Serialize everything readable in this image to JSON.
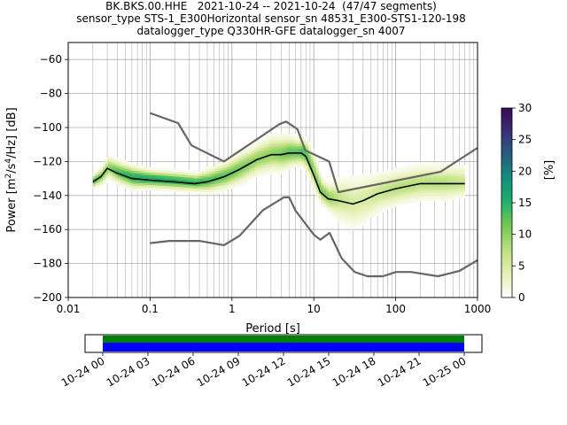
{
  "title_lines": [
    "BK.BKS.00.HHE   2021-10-24 -- 2021-10-24  (47/47 segments)",
    "sensor_type STS-1_E300Horizontal sensor_sn 48531_E300-STS1-120-198",
    "datalogger_type Q330HR-GFE datalogger_sn 4007"
  ],
  "chart_data": {
    "type": "heatmap",
    "title": "BK.BKS.00.HHE   2021-10-24 -- 2021-10-24  (47/47 segments)",
    "xlabel": "Period [s]",
    "ylabel": "Power [m²/s⁴/Hz] [dB]",
    "x_scale": "log",
    "xlim": [
      0.01,
      1000
    ],
    "ylim": [
      -200,
      -50
    ],
    "x_ticks": [
      0.01,
      0.1,
      1,
      10,
      100,
      1000
    ],
    "x_tick_labels": [
      "0.01",
      "0.1",
      "1",
      "10",
      "100",
      "1000"
    ],
    "y_ticks": [
      -200,
      -180,
      -160,
      -140,
      -120,
      -100,
      -80,
      -60
    ],
    "y_tick_labels": [
      "−200",
      "−180",
      "−160",
      "−140",
      "−120",
      "−100",
      "−80",
      "−60"
    ],
    "grid": true,
    "colorbar": {
      "label": "[%]",
      "range": [
        0,
        30
      ],
      "ticks": [
        0,
        5,
        10,
        15,
        20,
        25,
        30
      ],
      "tick_labels": [
        "0",
        "5",
        "10",
        "15",
        "20",
        "25",
        "30"
      ]
    },
    "series": [
      {
        "role": "model-high",
        "color": "#666666",
        "x": [
          0.1,
          0.22,
          0.32,
          0.8,
          3.8,
          4.6,
          6.3,
          7.9,
          15.4,
          20,
          354.8,
          1000
        ],
        "y": [
          -91.5,
          -97.4,
          -110.5,
          -120,
          -98,
          -96.5,
          -101,
          -113.5,
          -120,
          -138,
          -126,
          -112
        ]
      },
      {
        "role": "model-low",
        "color": "#666666",
        "x": [
          0.1,
          0.17,
          0.4,
          0.8,
          1.24,
          2.4,
          4.3,
          5,
          6,
          10,
          12,
          15.6,
          21.9,
          31.6,
          45,
          70,
          101,
          154,
          328,
          600,
          1000
        ],
        "y": [
          -168,
          -166.7,
          -166.7,
          -169.2,
          -163.7,
          -148.6,
          -141.1,
          -141.1,
          -149,
          -163,
          -166,
          -162,
          -177,
          -185,
          -187.5,
          -187.5,
          -185,
          -185,
          -187.5,
          -184.4,
          -178
        ]
      },
      {
        "role": "median",
        "color": "#000000",
        "x": [
          0.02,
          0.025,
          0.03,
          0.04,
          0.06,
          0.1,
          0.2,
          0.35,
          0.5,
          0.8,
          1.2,
          2,
          3,
          4,
          5,
          6,
          7,
          8,
          10,
          12,
          15,
          20,
          30,
          40,
          60,
          100,
          200,
          400,
          700
        ],
        "y": [
          -132,
          -129,
          -124,
          -127,
          -130,
          -131,
          -132,
          -133,
          -132,
          -129,
          -125,
          -119,
          -116,
          -116,
          -115,
          -115,
          -115,
          -117,
          -128,
          -138,
          -142,
          -143,
          -145,
          -143,
          -139,
          -136,
          -133,
          -133,
          -133
        ]
      }
    ],
    "density": [
      {
        "x": 0.02,
        "y": -132,
        "spread": 3,
        "level": 12
      },
      {
        "x": 0.025,
        "y": -129,
        "spread": 4,
        "level": 10
      },
      {
        "x": 0.03,
        "y": -124,
        "spread": 5,
        "level": 9
      },
      {
        "x": 0.04,
        "y": -127,
        "spread": 5,
        "level": 12
      },
      {
        "x": 0.06,
        "y": -130,
        "spread": 5,
        "level": 14
      },
      {
        "x": 0.1,
        "y": -131,
        "spread": 4,
        "level": 15
      },
      {
        "x": 0.2,
        "y": -132,
        "spread": 4,
        "level": 14
      },
      {
        "x": 0.35,
        "y": -133,
        "spread": 4,
        "level": 13
      },
      {
        "x": 0.5,
        "y": -132,
        "spread": 5,
        "level": 12
      },
      {
        "x": 0.8,
        "y": -129,
        "spread": 6,
        "level": 11
      },
      {
        "x": 1.2,
        "y": -125,
        "spread": 7,
        "level": 10
      },
      {
        "x": 2,
        "y": -119,
        "spread": 7,
        "level": 9
      },
      {
        "x": 3,
        "y": -116,
        "spread": 8,
        "level": 9
      },
      {
        "x": 4,
        "y": -116,
        "spread": 8,
        "level": 10
      },
      {
        "x": 5,
        "y": -115,
        "spread": 7,
        "level": 11
      },
      {
        "x": 6,
        "y": -115,
        "spread": 6,
        "level": 11
      },
      {
        "x": 7,
        "y": -115,
        "spread": 6,
        "level": 12
      },
      {
        "x": 8,
        "y": -117,
        "spread": 7,
        "level": 11
      },
      {
        "x": 10,
        "y": -128,
        "spread": 8,
        "level": 9
      },
      {
        "x": 12,
        "y": -138,
        "spread": 6,
        "level": 10
      },
      {
        "x": 15,
        "y": -142,
        "spread": 6,
        "level": 9
      },
      {
        "x": 20,
        "y": -143,
        "spread": 10,
        "level": 6
      },
      {
        "x": 30,
        "y": -145,
        "spread": 12,
        "level": 5
      },
      {
        "x": 40,
        "y": -143,
        "spread": 11,
        "level": 5
      },
      {
        "x": 60,
        "y": -139,
        "spread": 9,
        "level": 6
      },
      {
        "x": 100,
        "y": -136,
        "spread": 8,
        "level": 7
      },
      {
        "x": 200,
        "y": -133,
        "spread": 8,
        "level": 7
      },
      {
        "x": 400,
        "y": -133,
        "spread": 8,
        "level": 7
      },
      {
        "x": 700,
        "y": -133,
        "spread": 7,
        "level": 6
      }
    ],
    "timeline": {
      "tick_labels": [
        "10-24 00",
        "10-24 03",
        "10-24 06",
        "10-24 09",
        "10-24 12",
        "10-24 15",
        "10-24 18",
        "10-24 21",
        "10-25 00"
      ],
      "coverage": [
        0,
        24
      ],
      "bar_colors": [
        "#008000",
        "#0000ff"
      ]
    }
  }
}
